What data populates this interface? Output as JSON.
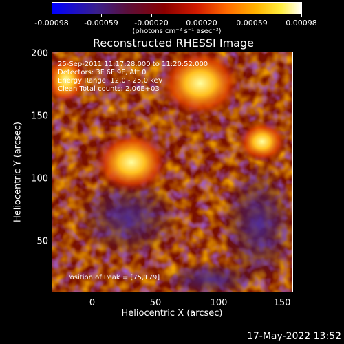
{
  "colorbar": {
    "ticks": [
      "-0.00098",
      "-0.00059",
      "-0.00020",
      "0.00020",
      "0.00059",
      "0.00098"
    ],
    "units": "(photons cm⁻² s⁻¹ asec⁻²)"
  },
  "plot": {
    "title": "Reconstructed RHESSI Image",
    "xlabel": "Heliocentric X (arcsec)",
    "ylabel": "Heliocentric Y (arcsec)",
    "xticks": [
      "0",
      "50",
      "100",
      "150"
    ],
    "yticks": [
      "200",
      "150",
      "100",
      "50"
    ],
    "annotations": {
      "time_range": "25-Sep-2011 11:17:28.000 to 11:20:52.000",
      "detectors": "Detectors: 3F 6F 9F, Att 0",
      "energy_range": "Energy Range: 12.0 - 25.0 keV",
      "method": "Clean     Total counts: 2.06E+03",
      "peak": "Position of Peak = [75,179]"
    }
  },
  "footer": {
    "timestamp": "17-May-2022 13:52"
  }
}
